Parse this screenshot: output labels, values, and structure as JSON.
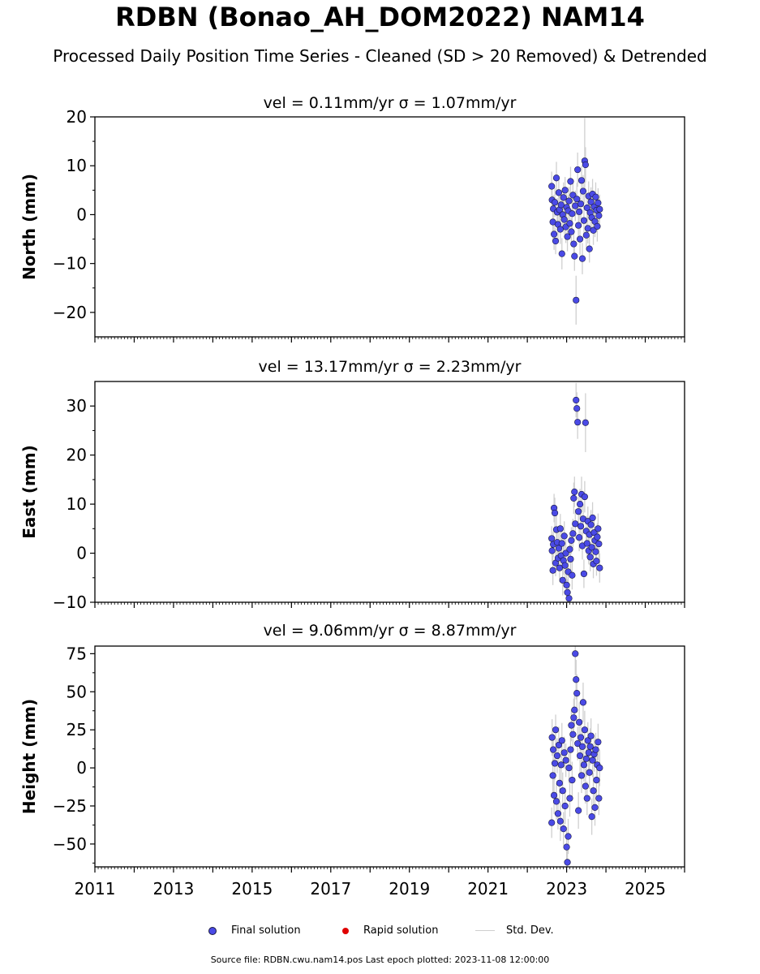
{
  "title": "RDBN (Bonao_AH_DOM2022) NAM14",
  "subtitle": "Processed Daily Position Time Series - Cleaned (SD > 20 Removed) & Detrended",
  "legend": {
    "final": "Final solution",
    "rapid": "Rapid solution",
    "std": "Std. Dev."
  },
  "footer": "Source file: RDBN.cwu.nam14.pos  Last epoch plotted: 2023-11-08 12:00:00",
  "colors": {
    "final": "#4a4ae6",
    "rapid": "#e00000",
    "std": "#cfcfcf",
    "marker_edge": "#1a1a40"
  },
  "chart_data": [
    {
      "type": "scatter",
      "panel": "north",
      "title": "vel = 0.11mm/yr   σ = 1.07mm/yr",
      "ylabel": "North (mm)",
      "xlim": [
        2011,
        2026
      ],
      "ylim": [
        -25,
        20
      ],
      "yticks": [
        -20,
        -10,
        0,
        10,
        20
      ],
      "yticklabels": [
        "−20",
        "−10",
        "0",
        "10",
        "20"
      ],
      "x_data_range": [
        2022.62,
        2023.86
      ],
      "series": [
        {
          "x": [
            2022.62,
            2022.63,
            2022.65,
            2022.66,
            2022.68,
            2022.7,
            2022.72,
            2022.74,
            2022.76,
            2022.78,
            2022.8,
            2022.82,
            2022.84,
            2022.86,
            2022.88,
            2022.9,
            2022.92,
            2022.94,
            2022.96,
            2022.98,
            2023.0,
            2023.02,
            2023.04,
            2023.06,
            2023.08,
            2023.1,
            2023.12,
            2023.14,
            2023.16,
            2023.18,
            2023.2,
            2023.22,
            2023.24,
            2023.26,
            2023.28,
            2023.3,
            2023.32,
            2023.34,
            2023.36,
            2023.38,
            2023.4,
            2023.42,
            2023.44,
            2023.46,
            2023.48,
            2023.5,
            2023.52,
            2023.54,
            2023.56,
            2023.58,
            2023.6,
            2023.62,
            2023.64,
            2023.66,
            2023.68,
            2023.7,
            2023.72,
            2023.74,
            2023.76,
            2023.78,
            2023.8,
            2023.82,
            2023.84
          ],
          "y": [
            5.8,
            3.0,
            -1.5,
            1.2,
            -4.0,
            2.5,
            -5.4,
            7.5,
            0.5,
            -2.0,
            4.5,
            1.0,
            -3.0,
            2.0,
            -8.0,
            0.0,
            3.5,
            -1.0,
            5.0,
            -2.5,
            1.5,
            -4.5,
            0.8,
            2.8,
            -1.8,
            6.8,
            -3.5,
            0.2,
            4.0,
            -6.0,
            -8.5,
            1.8,
            -17.5,
            3.2,
            9.2,
            -2.2,
            0.6,
            -5.0,
            2.2,
            7.0,
            -9.0,
            4.8,
            -1.2,
            11.0,
            10.2,
            -4.2,
            1.4,
            -2.8,
            3.8,
            -7.0,
            0.4,
            2.6,
            -0.6,
            4.2,
            -3.2,
            1.6,
            -1.4,
            3.6,
            0.9,
            -2.4,
            2.4,
            -0.2,
            1.1
          ],
          "sd": [
            3.0,
            2.5,
            3.5,
            2.8,
            3.2,
            3.0,
            2.7,
            3.3,
            2.9,
            3.1,
            2.6,
            3.4,
            3.0,
            2.8,
            3.2,
            2.9,
            3.1,
            3.0,
            2.7,
            3.3,
            2.8,
            3.0,
            3.2,
            2.9,
            3.1,
            3.0,
            2.8,
            3.4,
            3.2,
            2.9,
            3.0,
            3.1,
            5.0,
            3.3,
            3.5,
            3.0,
            2.8,
            3.2,
            3.1,
            3.0,
            3.2,
            3.3,
            2.9,
            8.8,
            3.6,
            3.0,
            2.9,
            3.1,
            3.0,
            2.8,
            3.2,
            3.0,
            2.9,
            3.1,
            3.0,
            2.8,
            3.2,
            3.0,
            2.9,
            3.1,
            3.0,
            2.8,
            3.0
          ]
        }
      ]
    },
    {
      "type": "scatter",
      "panel": "east",
      "title": "vel = 13.17mm/yr   σ = 2.23mm/yr",
      "ylabel": "East (mm)",
      "xlim": [
        2011,
        2026
      ],
      "ylim": [
        -10,
        35
      ],
      "yticks": [
        -10,
        0,
        10,
        20,
        30
      ],
      "yticklabels": [
        "−10",
        "0",
        "10",
        "20",
        "30"
      ],
      "x_data_range": [
        2022.62,
        2023.86
      ],
      "series": [
        {
          "x": [
            2022.62,
            2022.63,
            2022.65,
            2022.66,
            2022.68,
            2022.7,
            2022.72,
            2022.74,
            2022.76,
            2022.78,
            2022.8,
            2022.82,
            2022.84,
            2022.86,
            2022.88,
            2022.9,
            2022.92,
            2022.94,
            2022.96,
            2022.98,
            2023.0,
            2023.02,
            2023.04,
            2023.06,
            2023.08,
            2023.1,
            2023.12,
            2023.14,
            2023.16,
            2023.18,
            2023.2,
            2023.22,
            2023.24,
            2023.26,
            2023.28,
            2023.3,
            2023.32,
            2023.34,
            2023.36,
            2023.38,
            2023.4,
            2023.42,
            2023.44,
            2023.46,
            2023.48,
            2023.5,
            2023.52,
            2023.54,
            2023.56,
            2023.58,
            2023.6,
            2023.62,
            2023.64,
            2023.66,
            2023.68,
            2023.7,
            2023.72,
            2023.74,
            2023.76,
            2023.78,
            2023.8,
            2023.82,
            2023.84
          ],
          "y": [
            3.0,
            0.5,
            -3.5,
            1.8,
            9.2,
            8.2,
            -2.0,
            4.8,
            2.2,
            -1.0,
            1.0,
            -3.0,
            5.0,
            -0.5,
            2.0,
            -5.5,
            -1.5,
            3.5,
            -2.5,
            0.0,
            -6.5,
            -8.0,
            -3.8,
            -9.2,
            0.8,
            -1.2,
            2.6,
            -4.5,
            4.0,
            11.2,
            12.5,
            6.0,
            31.2,
            29.5,
            26.7,
            8.5,
            3.2,
            10.0,
            5.5,
            12.0,
            1.5,
            7.0,
            -4.2,
            11.5,
            26.6,
            4.5,
            2.0,
            6.5,
            0.5,
            3.8,
            -0.8,
            5.8,
            1.2,
            7.2,
            -2.2,
            4.2,
            2.6,
            0.3,
            -1.6,
            3.3,
            5.0,
            1.9,
            -3.0
          ],
          "sd": [
            2.5,
            2.8,
            3.0,
            2.6,
            2.9,
            3.1,
            2.7,
            3.0,
            2.8,
            2.6,
            3.2,
            2.9,
            3.0,
            2.7,
            2.8,
            3.1,
            2.9,
            3.0,
            2.6,
            2.8,
            3.0,
            2.7,
            2.9,
            3.1,
            2.8,
            3.0,
            2.7,
            2.9,
            3.0,
            3.2,
            3.1,
            3.0,
            3.5,
            3.3,
            3.4,
            3.0,
            2.8,
            3.1,
            2.9,
            3.6,
            2.8,
            3.0,
            2.9,
            3.2,
            6.0,
            3.1,
            2.9,
            3.0,
            2.8,
            3.1,
            2.9,
            3.0,
            2.8,
            3.2,
            2.9,
            3.0,
            2.8,
            2.9,
            3.0,
            2.8,
            3.1,
            2.9,
            3.0
          ]
        }
      ]
    },
    {
      "type": "scatter",
      "panel": "height",
      "title": "vel = 9.06mm/yr   σ = 8.87mm/yr",
      "ylabel": "Height (mm)",
      "xlim": [
        2011,
        2026
      ],
      "ylim": [
        -65,
        80
      ],
      "yticks": [
        -50,
        -25,
        0,
        25,
        50,
        75
      ],
      "yticklabels": [
        "−50",
        "−25",
        "0",
        "25",
        "50",
        "75"
      ],
      "xticks": [
        2011,
        2013,
        2015,
        2017,
        2019,
        2021,
        2023,
        2025
      ],
      "xticklabels": [
        "2011",
        "2013",
        "2015",
        "2017",
        "2019",
        "2021",
        "2023",
        "2025"
      ],
      "x_data_range": [
        2022.62,
        2023.86
      ],
      "series": [
        {
          "x": [
            2022.62,
            2022.63,
            2022.65,
            2022.66,
            2022.68,
            2022.7,
            2022.72,
            2022.74,
            2022.76,
            2022.78,
            2022.8,
            2022.82,
            2022.84,
            2022.86,
            2022.88,
            2022.9,
            2022.92,
            2022.94,
            2022.96,
            2022.98,
            2023.0,
            2023.02,
            2023.04,
            2023.06,
            2023.08,
            2023.1,
            2023.12,
            2023.14,
            2023.16,
            2023.18,
            2023.2,
            2023.22,
            2023.24,
            2023.26,
            2023.28,
            2023.3,
            2023.32,
            2023.34,
            2023.36,
            2023.38,
            2023.4,
            2023.42,
            2023.44,
            2023.46,
            2023.48,
            2023.5,
            2023.52,
            2023.54,
            2023.56,
            2023.58,
            2023.6,
            2023.62,
            2023.64,
            2023.66,
            2023.68,
            2023.7,
            2023.72,
            2023.74,
            2023.76,
            2023.78,
            2023.8,
            2023.82,
            2023.84
          ],
          "y": [
            -36.0,
            20.0,
            -5.0,
            12.0,
            -18.0,
            3.0,
            25.0,
            -22.0,
            8.0,
            -30.0,
            15.0,
            -10.0,
            -35.0,
            2.0,
            18.0,
            -15.0,
            -40.0,
            10.0,
            -25.0,
            5.0,
            -52.0,
            -62.0,
            -45.0,
            0.0,
            -20.0,
            12.0,
            28.0,
            -8.0,
            22.0,
            33.0,
            38.0,
            75.0,
            58.0,
            49.0,
            16.0,
            -28.0,
            30.0,
            8.0,
            20.0,
            -5.0,
            14.0,
            43.0,
            2.0,
            25.0,
            -12.0,
            6.0,
            -20.0,
            18.0,
            10.0,
            -3.0,
            14.0,
            21.0,
            -32.0,
            5.0,
            -15.0,
            9.0,
            -26.0,
            12.0,
            -8.0,
            2.0,
            17.0,
            -20.0,
            0.0
          ],
          "sd": [
            10.0,
            12.0,
            11.0,
            10.5,
            12.5,
            11.0,
            10.0,
            12.0,
            11.5,
            10.5,
            12.0,
            11.0,
            13.0,
            10.0,
            11.5,
            12.0,
            11.0,
            10.5,
            12.0,
            11.0,
            13.0,
            12.0,
            11.5,
            10.0,
            12.0,
            11.0,
            10.5,
            12.0,
            11.0,
            12.5,
            11.5,
            14.0,
            13.0,
            12.5,
            11.0,
            12.0,
            13.0,
            11.0,
            12.0,
            11.5,
            12.0,
            13.0,
            11.0,
            12.5,
            11.5,
            12.0,
            11.0,
            12.0,
            11.5,
            11.0,
            12.0,
            11.5,
            12.0,
            11.0,
            12.0,
            11.5,
            12.0,
            11.0,
            12.0,
            11.5,
            12.0,
            11.0,
            12.0
          ]
        }
      ]
    }
  ]
}
